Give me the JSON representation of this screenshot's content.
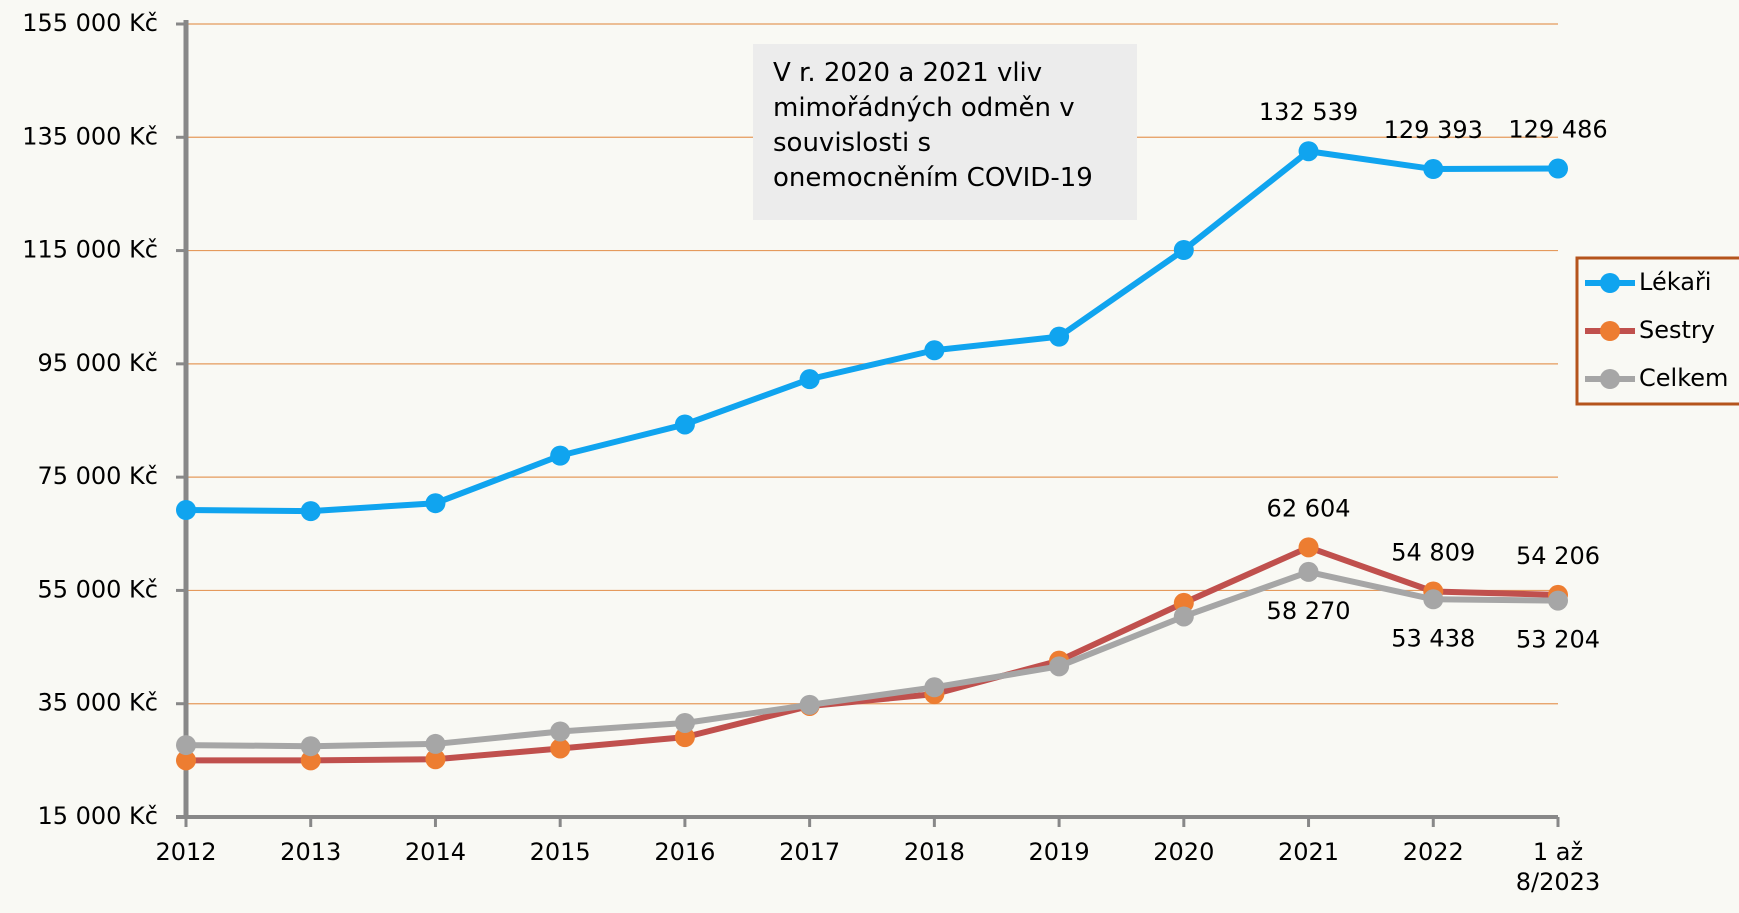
{
  "chart_data": {
    "type": "line",
    "annotation": "V r. 2020 a 2021 vliv mimořádných odměn v souvislosti s onemocněním COVID-19",
    "categories": [
      "2012",
      "2013",
      "2014",
      "2015",
      "2016",
      "2017",
      "2018",
      "2019",
      "2020",
      "2021",
      "2022",
      "1 až 8/2023"
    ],
    "series": [
      {
        "name": "Lékaři",
        "color": "#10a4ef",
        "marker_color": "#10a4ef",
        "label_position": "above",
        "values": [
          69200,
          69000,
          70400,
          78800,
          84300,
          92300,
          97400,
          99800,
          115100,
          132539,
          129393,
          129486
        ],
        "value_labels": [
          null,
          null,
          null,
          null,
          null,
          null,
          null,
          null,
          null,
          "132 539",
          "129 393",
          "129 486"
        ]
      },
      {
        "name": "Sestry",
        "color": "#c0504d",
        "marker_color": "#ed7d31",
        "label_position": "above",
        "values": [
          25000,
          25000,
          25200,
          27100,
          29100,
          34600,
          36700,
          42600,
          52800,
          62604,
          54809,
          54206
        ],
        "value_labels": [
          null,
          null,
          null,
          null,
          null,
          null,
          null,
          null,
          null,
          "62 604",
          "54 809",
          "54 206"
        ]
      },
      {
        "name": "Celkem",
        "color": "#a6a6a6",
        "marker_color": "#a6a6a6",
        "label_position": "below",
        "values": [
          27700,
          27500,
          27900,
          30100,
          31600,
          34800,
          37900,
          41600,
          50400,
          58270,
          53438,
          53204
        ],
        "value_labels": [
          null,
          null,
          null,
          null,
          null,
          null,
          null,
          null,
          null,
          "58 270",
          "53 438",
          "53 204"
        ]
      }
    ],
    "ylim": [
      15000,
      155000
    ],
    "yticks": [
      {
        "value": 15000,
        "label": "15 000 Kč"
      },
      {
        "value": 35000,
        "label": "35 000 Kč"
      },
      {
        "value": 55000,
        "label": "55 000 Kč"
      },
      {
        "value": 75000,
        "label": "75 000 Kč"
      },
      {
        "value": 95000,
        "label": "95 000 Kč"
      },
      {
        "value": 115000,
        "label": "115 000 Kč"
      },
      {
        "value": 135000,
        "label": "135 000 Kč"
      },
      {
        "value": 155000,
        "label": "155 000 Kč"
      }
    ],
    "grid": true,
    "grid_color": "#e59a5c",
    "legend": "right"
  }
}
